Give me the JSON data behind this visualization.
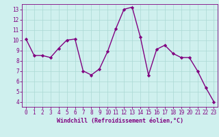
{
  "x": [
    0,
    1,
    2,
    3,
    4,
    5,
    6,
    7,
    8,
    9,
    10,
    11,
    12,
    13,
    14,
    15,
    16,
    17,
    18,
    19,
    20,
    21,
    22,
    23
  ],
  "y": [
    10.1,
    8.5,
    8.5,
    8.3,
    9.2,
    10.0,
    10.1,
    7.0,
    6.6,
    7.2,
    8.9,
    11.1,
    13.0,
    13.2,
    10.3,
    6.6,
    9.1,
    9.5,
    8.7,
    8.3,
    8.3,
    7.0,
    5.4,
    4.0
  ],
  "line_color": "#800080",
  "marker": "D",
  "marker_size": 2.2,
  "bg_color": "#cff0ee",
  "grid_color": "#aad8d4",
  "xlabel": "Windchill (Refroidissement éolien,°C)",
  "xlim": [
    -0.5,
    23.5
  ],
  "ylim": [
    3.5,
    13.5
  ],
  "yticks": [
    4,
    5,
    6,
    7,
    8,
    9,
    10,
    11,
    12,
    13
  ],
  "xticks": [
    0,
    1,
    2,
    3,
    4,
    5,
    6,
    7,
    8,
    9,
    10,
    11,
    12,
    13,
    14,
    15,
    16,
    17,
    18,
    19,
    20,
    21,
    22,
    23
  ],
  "tick_color": "#800080",
  "label_color": "#800080",
  "axis_color": "#800080",
  "tick_fontsize": 5.5,
  "xlabel_fontsize": 6.0,
  "linewidth": 1.0
}
